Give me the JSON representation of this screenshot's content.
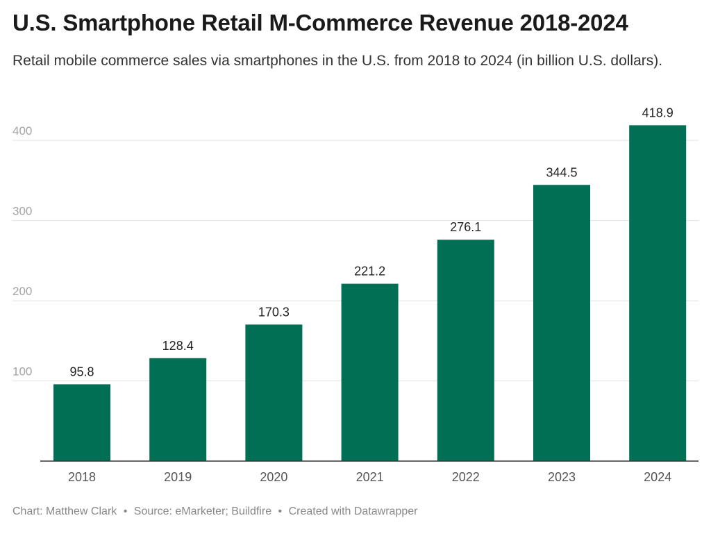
{
  "chart_data": {
    "type": "bar",
    "title": "U.S. Smartphone Retail M-Commerce Revenue 2018-2024",
    "subtitle": "Retail mobile commerce sales via smartphones in the U.S. from 2018 to 2024 (in billion U.S. dollars).",
    "xlabel": "",
    "ylabel": "",
    "categories": [
      "2018",
      "2019",
      "2020",
      "2021",
      "2022",
      "2023",
      "2024"
    ],
    "values": [
      95.8,
      128.4,
      170.3,
      221.2,
      276.1,
      344.5,
      418.9
    ],
    "value_labels": [
      "95.8",
      "128.4",
      "170.3",
      "221.2",
      "276.1",
      "344.5",
      "418.9"
    ],
    "ylim": [
      0,
      440
    ],
    "yticks": [
      100,
      200,
      300,
      400
    ],
    "ytick_labels": [
      "100",
      "200",
      "300",
      "400"
    ],
    "grid": true,
    "legend": "none",
    "bar_color": "#006f54"
  },
  "footer": {
    "chart_credit": "Chart: Matthew Clark",
    "source": "Source: eMarketer; Buildfire",
    "created_with": "Created with Datawrapper",
    "separator": "•"
  }
}
